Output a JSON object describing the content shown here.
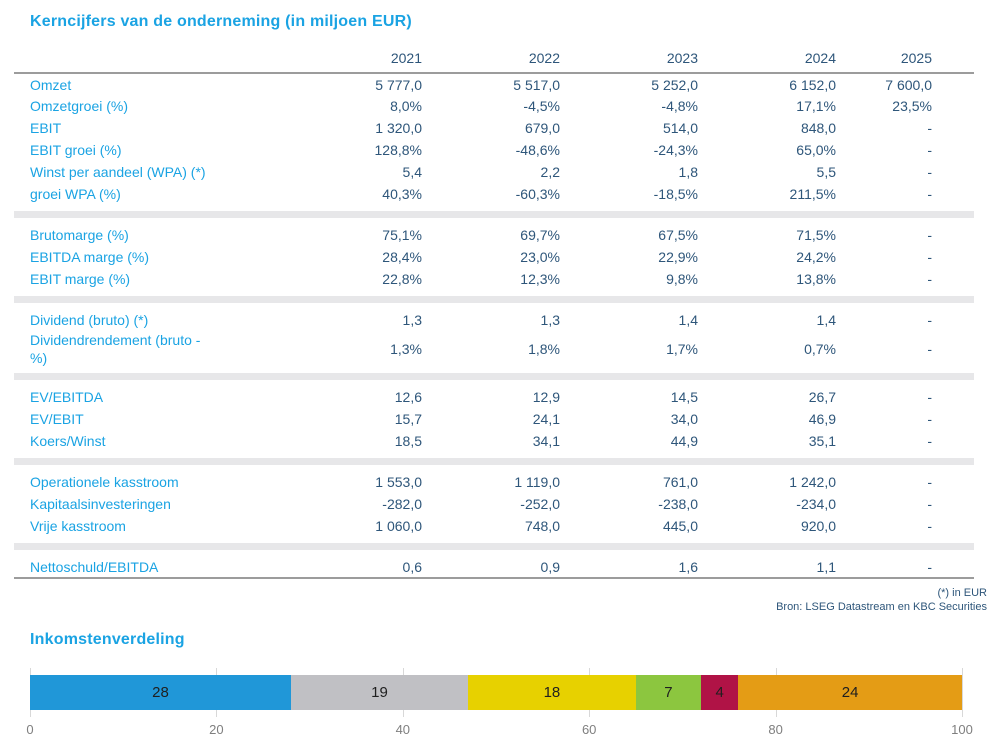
{
  "colors": {
    "accent_blue": "#1aa3e3",
    "text_dark_blue": "#2e567a",
    "rule_gray": "#9c9c9c",
    "band_gray": "#e7e7e9",
    "grid_gray": "#d8d8d8",
    "tick_gray": "#7f7f7f"
  },
  "table": {
    "title": "Kerncijfers van de onderneming (in miljoen EUR)",
    "years": [
      "2021",
      "2022",
      "2023",
      "2024",
      "2025"
    ],
    "sections": [
      {
        "rows": [
          {
            "label": "Omzet",
            "values": [
              "5 777,0",
              "5 517,0",
              "5 252,0",
              "6 152,0",
              "7 600,0"
            ]
          },
          {
            "label": "Omzetgroei (%)",
            "values": [
              "8,0%",
              "-4,5%",
              "-4,8%",
              "17,1%",
              "23,5%"
            ]
          },
          {
            "label": "EBIT",
            "values": [
              "1 320,0",
              "679,0",
              "514,0",
              "848,0",
              "-"
            ]
          },
          {
            "label": "EBIT groei (%)",
            "values": [
              "128,8%",
              "-48,6%",
              "-24,3%",
              "65,0%",
              "-"
            ]
          },
          {
            "label": "Winst per aandeel (WPA) (*)",
            "values": [
              "5,4",
              "2,2",
              "1,8",
              "5,5",
              "-"
            ]
          },
          {
            "label": "groei WPA (%)",
            "values": [
              "40,3%",
              "-60,3%",
              "-18,5%",
              "211,5%",
              "-"
            ]
          }
        ]
      },
      {
        "rows": [
          {
            "label": "Brutomarge (%)",
            "values": [
              "75,1%",
              "69,7%",
              "67,5%",
              "71,5%",
              "-"
            ]
          },
          {
            "label": "EBITDA marge (%)",
            "values": [
              "28,4%",
              "23,0%",
              "22,9%",
              "24,2%",
              "-"
            ]
          },
          {
            "label": "EBIT marge (%)",
            "values": [
              "22,8%",
              "12,3%",
              "9,8%",
              "13,8%",
              "-"
            ]
          }
        ]
      },
      {
        "rows": [
          {
            "label": "Dividend (bruto) (*)",
            "values": [
              "1,3",
              "1,3",
              "1,4",
              "1,4",
              "-"
            ]
          },
          {
            "label": "Dividendrendement (bruto -\n%)",
            "values": [
              "1,3%",
              "1,8%",
              "1,7%",
              "0,7%",
              "-"
            ]
          }
        ]
      },
      {
        "rows": [
          {
            "label": "EV/EBITDA",
            "values": [
              "12,6",
              "12,9",
              "14,5",
              "26,7",
              "-"
            ]
          },
          {
            "label": "EV/EBIT",
            "values": [
              "15,7",
              "24,1",
              "34,0",
              "46,9",
              "-"
            ]
          },
          {
            "label": "Koers/Winst",
            "values": [
              "18,5",
              "34,1",
              "44,9",
              "35,1",
              "-"
            ]
          }
        ]
      },
      {
        "rows": [
          {
            "label": "Operationele kasstroom",
            "values": [
              "1 553,0",
              "1 119,0",
              "761,0",
              "1 242,0",
              "-"
            ]
          },
          {
            "label": "Kapitaalsinvesteringen",
            "values": [
              "-282,0",
              "-252,0",
              "-238,0",
              "-234,0",
              "-"
            ]
          },
          {
            "label": "Vrije kasstroom",
            "values": [
              "1 060,0",
              "748,0",
              "445,0",
              "920,0",
              "-"
            ]
          }
        ]
      },
      {
        "rows": [
          {
            "label": "Nettoschuld/EBITDA",
            "values": [
              "0,6",
              "0,9",
              "1,6",
              "1,1",
              "-"
            ]
          }
        ]
      }
    ],
    "footnote": "(*) in EUR",
    "source": "Bron: LSEG Datastream en KBC Securities"
  },
  "chart_data": {
    "type": "bar",
    "orientation": "horizontal_stacked",
    "title": "Inkomstenverdeling",
    "segments": [
      {
        "label": "28",
        "value": 28,
        "color": "#2097d8"
      },
      {
        "label": "19",
        "value": 19,
        "color": "#c0c0c4"
      },
      {
        "label": "18",
        "value": 18,
        "color": "#e7d100"
      },
      {
        "label": "7",
        "value": 7,
        "color": "#8cc63f"
      },
      {
        "label": "4",
        "value": 4,
        "color": "#b01346"
      },
      {
        "label": "24",
        "value": 24,
        "color": "#e49c15"
      }
    ],
    "xlim": [
      0,
      100
    ],
    "xticks": [
      0,
      20,
      40,
      60,
      80,
      100
    ],
    "grid": true,
    "legend": "none"
  }
}
